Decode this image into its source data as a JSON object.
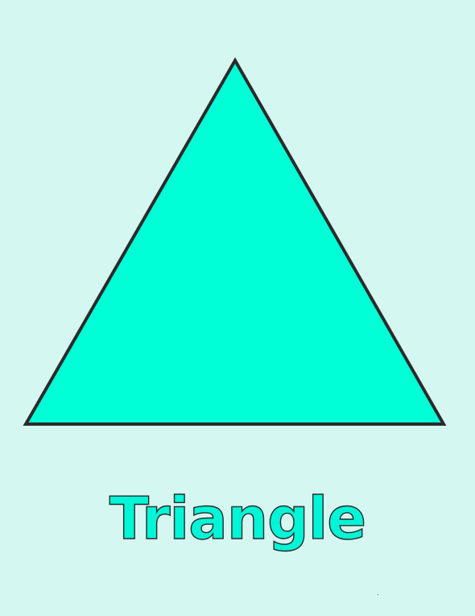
{
  "label": "Triangle",
  "shape": {
    "name": "triangle",
    "fill": "#00ffd6",
    "stroke": "#2a2a2a"
  },
  "colors": {
    "background": "#d5f7f1",
    "text_fill": "#00f6d6",
    "text_outline": "#2a2a2a"
  }
}
